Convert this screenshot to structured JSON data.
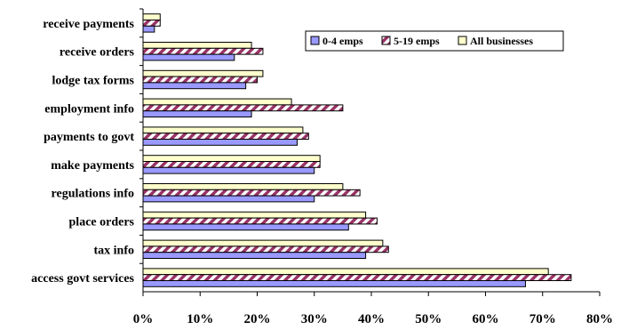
{
  "chart_data": {
    "type": "bar",
    "orientation": "horizontal",
    "categories": [
      "receive payments",
      "receive orders",
      "lodge tax forms",
      "employment info",
      "payments to govt",
      "make payments",
      "regulations info",
      "place orders",
      "tax info",
      "access govt services"
    ],
    "series": [
      {
        "name": "0-4 emps",
        "color": "#9999ff",
        "values": [
          2,
          16,
          18,
          19,
          27,
          30,
          30,
          36,
          39,
          67
        ]
      },
      {
        "name": "5-19 emps",
        "color": "#993366",
        "pattern": "diagonal-stripes",
        "values": [
          3,
          21,
          20,
          35,
          29,
          31,
          38,
          41,
          43,
          75
        ]
      },
      {
        "name": "All businesses",
        "color": "#ffffcc",
        "values": [
          3,
          19,
          21,
          26,
          28,
          31,
          35,
          39,
          42,
          71
        ]
      }
    ],
    "x_ticks": [
      "0%",
      "10%",
      "20%",
      "30%",
      "40%",
      "50%",
      "60%",
      "70%",
      "80%"
    ],
    "xlim": [
      0,
      80
    ],
    "legend_position": "top-right",
    "grid": false
  }
}
